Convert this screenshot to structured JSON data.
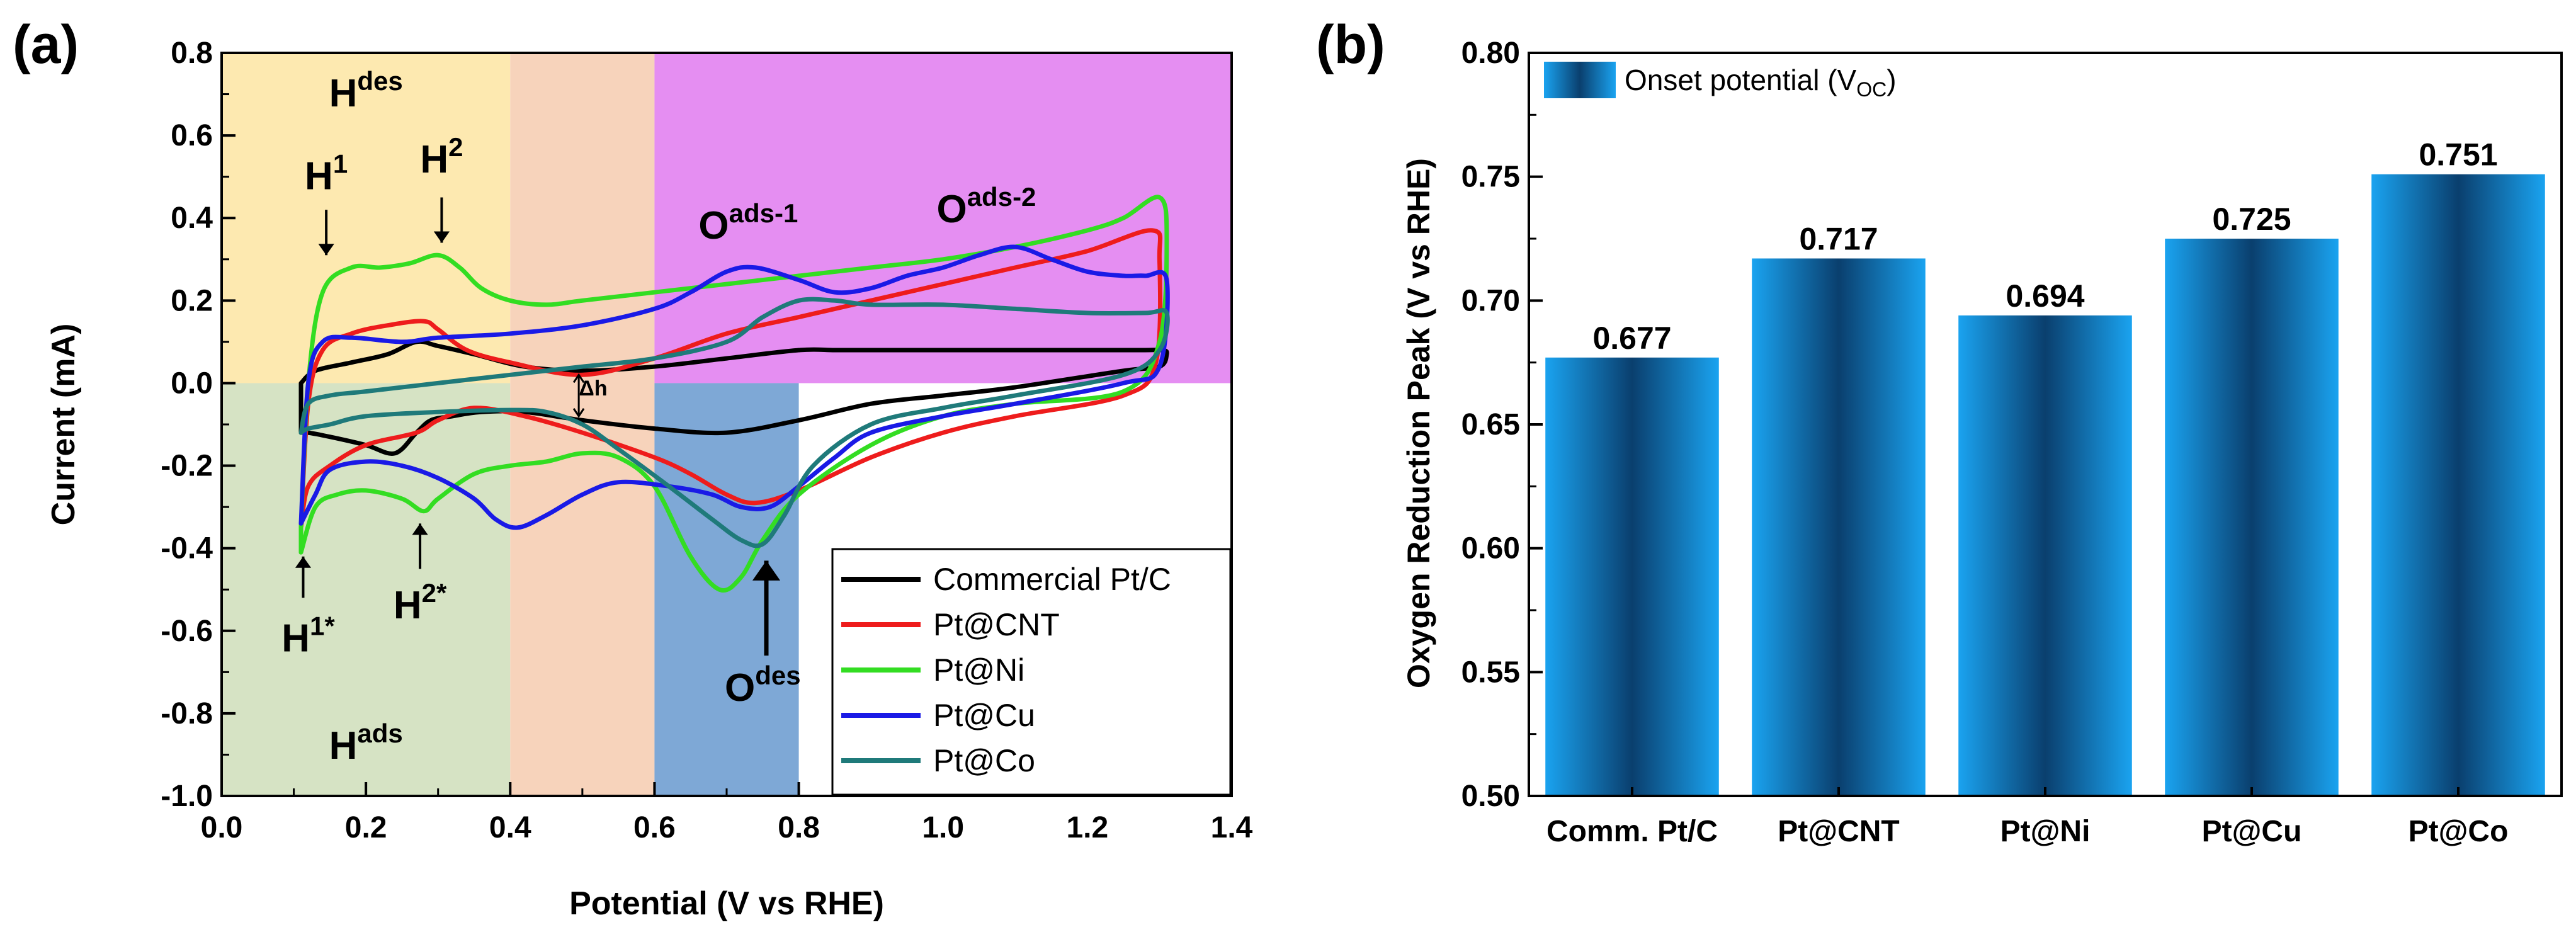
{
  "chart_data": [
    {
      "type": "line",
      "panel_label": "(a)",
      "xlabel": "Potential (V vs RHE)",
      "ylabel": "Current (mA)",
      "xlim": [
        0.0,
        1.4
      ],
      "ylim": [
        -1.0,
        0.8
      ],
      "x_ticks": [
        0.0,
        0.2,
        0.4,
        0.6,
        0.8,
        1.0,
        1.2,
        1.4
      ],
      "y_ticks": [
        -1.0,
        -0.8,
        -0.6,
        -0.4,
        -0.2,
        0.0,
        0.2,
        0.4,
        0.6,
        0.8
      ],
      "x_tick_labels": [
        "0.0",
        "0.2",
        "0.4",
        "0.6",
        "0.8",
        "1.0",
        "1.2",
        "1.4"
      ],
      "y_tick_labels": [
        "-1.0",
        "-0.8",
        "-0.6",
        "-0.4",
        "-0.2",
        "0.0",
        "0.2",
        "0.4",
        "0.6",
        "0.8"
      ],
      "regions": [
        {
          "name": "hdes-region",
          "x": [
            0.0,
            0.4
          ],
          "y": [
            0.0,
            0.8
          ],
          "color": "#fde9b0"
        },
        {
          "name": "hads-region",
          "x": [
            0.0,
            0.4
          ],
          "y": [
            -1.0,
            0.0
          ],
          "color": "#d6e3c4"
        },
        {
          "name": "double-layer-region",
          "x": [
            0.4,
            0.6
          ],
          "y": [
            -1.0,
            0.8
          ],
          "color": "#f7d3bb"
        },
        {
          "name": "oads-region",
          "x": [
            0.6,
            1.4
          ],
          "y": [
            0.0,
            0.8
          ],
          "color": "#e58ef2"
        },
        {
          "name": "odes-region",
          "x": [
            0.6,
            0.8
          ],
          "y": [
            -1.0,
            0.0
          ],
          "color": "#7ea8d6"
        }
      ],
      "annotations": [
        {
          "name": "hdes-label",
          "base": "H",
          "sup": "des",
          "x": 0.2,
          "y": 0.67
        },
        {
          "name": "h1-label",
          "base": "H",
          "sup": "1",
          "x": 0.145,
          "y": 0.47
        },
        {
          "name": "h2-label",
          "base": "H",
          "sup": "2",
          "x": 0.305,
          "y": 0.51
        },
        {
          "name": "oads1-label",
          "base": "O",
          "sup": "ads-1",
          "x": 0.73,
          "y": 0.35
        },
        {
          "name": "oads2-label",
          "base": "O",
          "sup": "ads-2",
          "x": 1.06,
          "y": 0.39
        },
        {
          "name": "h1star-label",
          "base": "H",
          "sup": "1*",
          "x": 0.12,
          "y": -0.65
        },
        {
          "name": "h2star-label",
          "base": "H",
          "sup": "2*",
          "x": 0.275,
          "y": -0.57
        },
        {
          "name": "odes-label",
          "base": "O",
          "sup": "des",
          "x": 0.75,
          "y": -0.77
        },
        {
          "name": "hads-label",
          "base": "H",
          "sup": "ads",
          "x": 0.2,
          "y": -0.91
        },
        {
          "name": "delta-h-label",
          "base": "Δh",
          "sup": "",
          "x": 0.515,
          "y": -0.03
        }
      ],
      "legend": [
        "Commercial Pt/C",
        "Pt@CNT",
        "Pt@Ni",
        "Pt@Cu",
        "Pt@Co"
      ],
      "series": [
        {
          "name": "Commercial Pt/C",
          "color": "#000000",
          "x": [
            0.11,
            0.13,
            0.18,
            0.23,
            0.27,
            0.3,
            0.35,
            0.42,
            0.5,
            0.6,
            0.7,
            0.8,
            0.85,
            0.9,
            1.0,
            1.1,
            1.2,
            1.28,
            1.305,
            1.31,
            1.3,
            1.25,
            1.1,
            1.0,
            0.9,
            0.8,
            0.7,
            0.6,
            0.5,
            0.42,
            0.36,
            0.32,
            0.29,
            0.27,
            0.24,
            0.2,
            0.15,
            0.12,
            0.11
          ],
          "y": [
            0.0,
            0.03,
            0.05,
            0.07,
            0.1,
            0.09,
            0.07,
            0.04,
            0.03,
            0.04,
            0.06,
            0.08,
            0.08,
            0.08,
            0.08,
            0.08,
            0.08,
            0.08,
            0.08,
            0.07,
            0.04,
            0.03,
            -0.01,
            -0.03,
            -0.05,
            -0.09,
            -0.12,
            -0.11,
            -0.09,
            -0.07,
            -0.07,
            -0.08,
            -0.09,
            -0.12,
            -0.17,
            -0.15,
            -0.13,
            -0.12,
            -0.12
          ]
        },
        {
          "name": "Pt@CNT",
          "color": "#ee1c1c",
          "x": [
            0.11,
            0.12,
            0.14,
            0.18,
            0.23,
            0.28,
            0.3,
            0.34,
            0.4,
            0.5,
            0.6,
            0.7,
            0.8,
            0.9,
            1.0,
            1.1,
            1.2,
            1.29,
            1.3,
            1.295,
            1.25,
            1.1,
            1.0,
            0.9,
            0.8,
            0.74,
            0.7,
            0.65,
            0.6,
            0.5,
            0.42,
            0.35,
            0.3,
            0.27,
            0.2,
            0.15,
            0.12,
            0.11
          ],
          "y": [
            -0.35,
            -0.05,
            0.08,
            0.12,
            0.14,
            0.15,
            0.13,
            0.08,
            0.05,
            0.02,
            0.06,
            0.12,
            0.16,
            0.2,
            0.24,
            0.28,
            0.32,
            0.37,
            0.3,
            0.05,
            -0.03,
            -0.08,
            -0.12,
            -0.18,
            -0.26,
            -0.29,
            -0.27,
            -0.22,
            -0.18,
            -0.12,
            -0.08,
            -0.06,
            -0.09,
            -0.12,
            -0.15,
            -0.2,
            -0.25,
            -0.35
          ]
        },
        {
          "name": "Pt@Ni",
          "color": "#33dd22",
          "x": [
            0.11,
            0.12,
            0.14,
            0.18,
            0.22,
            0.26,
            0.3,
            0.33,
            0.36,
            0.4,
            0.45,
            0.5,
            0.6,
            0.7,
            0.8,
            0.9,
            1.0,
            1.1,
            1.2,
            1.25,
            1.3,
            1.31,
            1.3,
            1.25,
            1.1,
            1.0,
            0.9,
            0.8,
            0.75,
            0.72,
            0.69,
            0.65,
            0.6,
            0.55,
            0.5,
            0.45,
            0.4,
            0.35,
            0.3,
            0.28,
            0.25,
            0.2,
            0.16,
            0.13,
            0.11
          ],
          "y": [
            -0.35,
            0.0,
            0.22,
            0.28,
            0.28,
            0.29,
            0.31,
            0.28,
            0.23,
            0.2,
            0.19,
            0.2,
            0.22,
            0.24,
            0.26,
            0.28,
            0.3,
            0.33,
            0.37,
            0.4,
            0.45,
            0.35,
            0.1,
            -0.02,
            -0.05,
            -0.08,
            -0.15,
            -0.27,
            -0.38,
            -0.47,
            -0.5,
            -0.42,
            -0.25,
            -0.18,
            -0.17,
            -0.19,
            -0.2,
            -0.22,
            -0.28,
            -0.31,
            -0.28,
            -0.26,
            -0.27,
            -0.3,
            -0.41
          ]
        },
        {
          "name": "Pt@Cu",
          "color": "#1a1ae6",
          "x": [
            0.11,
            0.12,
            0.14,
            0.18,
            0.25,
            0.3,
            0.4,
            0.5,
            0.6,
            0.65,
            0.7,
            0.74,
            0.8,
            0.85,
            0.9,
            0.95,
            1.0,
            1.05,
            1.1,
            1.15,
            1.2,
            1.25,
            1.28,
            1.31,
            1.3,
            1.25,
            1.1,
            1.0,
            0.9,
            0.85,
            0.8,
            0.76,
            0.72,
            0.68,
            0.62,
            0.55,
            0.5,
            0.45,
            0.41,
            0.38,
            0.35,
            0.3,
            0.25,
            0.2,
            0.15,
            0.13,
            0.11
          ],
          "y": [
            -0.34,
            0.0,
            0.1,
            0.11,
            0.1,
            0.11,
            0.12,
            0.14,
            0.18,
            0.22,
            0.27,
            0.28,
            0.25,
            0.22,
            0.23,
            0.26,
            0.28,
            0.31,
            0.33,
            0.3,
            0.27,
            0.26,
            0.26,
            0.25,
            0.04,
            0.0,
            -0.05,
            -0.08,
            -0.12,
            -0.18,
            -0.25,
            -0.3,
            -0.3,
            -0.27,
            -0.25,
            -0.24,
            -0.27,
            -0.32,
            -0.35,
            -0.33,
            -0.28,
            -0.23,
            -0.2,
            -0.19,
            -0.21,
            -0.27,
            -0.34
          ]
        },
        {
          "name": "Pt@Co",
          "color": "#1f7a7a",
          "x": [
            0.11,
            0.12,
            0.15,
            0.2,
            0.3,
            0.4,
            0.5,
            0.6,
            0.7,
            0.75,
            0.8,
            0.85,
            0.9,
            1.0,
            1.1,
            1.2,
            1.28,
            1.31,
            1.3,
            1.25,
            1.1,
            1.0,
            0.9,
            0.82,
            0.78,
            0.75,
            0.72,
            0.68,
            0.62,
            0.55,
            0.5,
            0.45,
            0.4,
            0.3,
            0.2,
            0.15,
            0.12,
            0.11
          ],
          "y": [
            -0.12,
            -0.05,
            -0.03,
            -0.02,
            0.0,
            0.02,
            0.04,
            0.06,
            0.1,
            0.16,
            0.2,
            0.2,
            0.19,
            0.19,
            0.18,
            0.17,
            0.17,
            0.17,
            0.08,
            0.02,
            -0.03,
            -0.06,
            -0.1,
            -0.2,
            -0.32,
            -0.39,
            -0.38,
            -0.33,
            -0.25,
            -0.16,
            -0.1,
            -0.07,
            -0.065,
            -0.07,
            -0.08,
            -0.1,
            -0.11,
            -0.12
          ]
        }
      ]
    },
    {
      "type": "bar",
      "panel_label": "(b)",
      "categories": [
        "Comm. Pt/C",
        "Pt@CNT",
        "Pt@Ni",
        "Pt@Cu",
        "Pt@Co"
      ],
      "values": [
        0.677,
        0.717,
        0.694,
        0.725,
        0.751
      ],
      "value_labels": [
        "0.677",
        "0.717",
        "0.694",
        "0.725",
        "0.751"
      ],
      "ylabel": "Oxygen Reduction Peak (V vs RHE)",
      "xlabel": "",
      "ylim": [
        0.5,
        0.8
      ],
      "y_ticks": [
        0.5,
        0.55,
        0.6,
        0.65,
        0.7,
        0.75,
        0.8
      ],
      "y_tick_labels": [
        "0.50",
        "0.55",
        "0.60",
        "0.65",
        "0.70",
        "0.75",
        "0.80"
      ],
      "legend_main": "Onset potential (V",
      "legend_sub": "OC",
      "legend_close": ")",
      "bar_color": "#1aa3f0",
      "bar_center_color": "#0a3f6e"
    }
  ]
}
